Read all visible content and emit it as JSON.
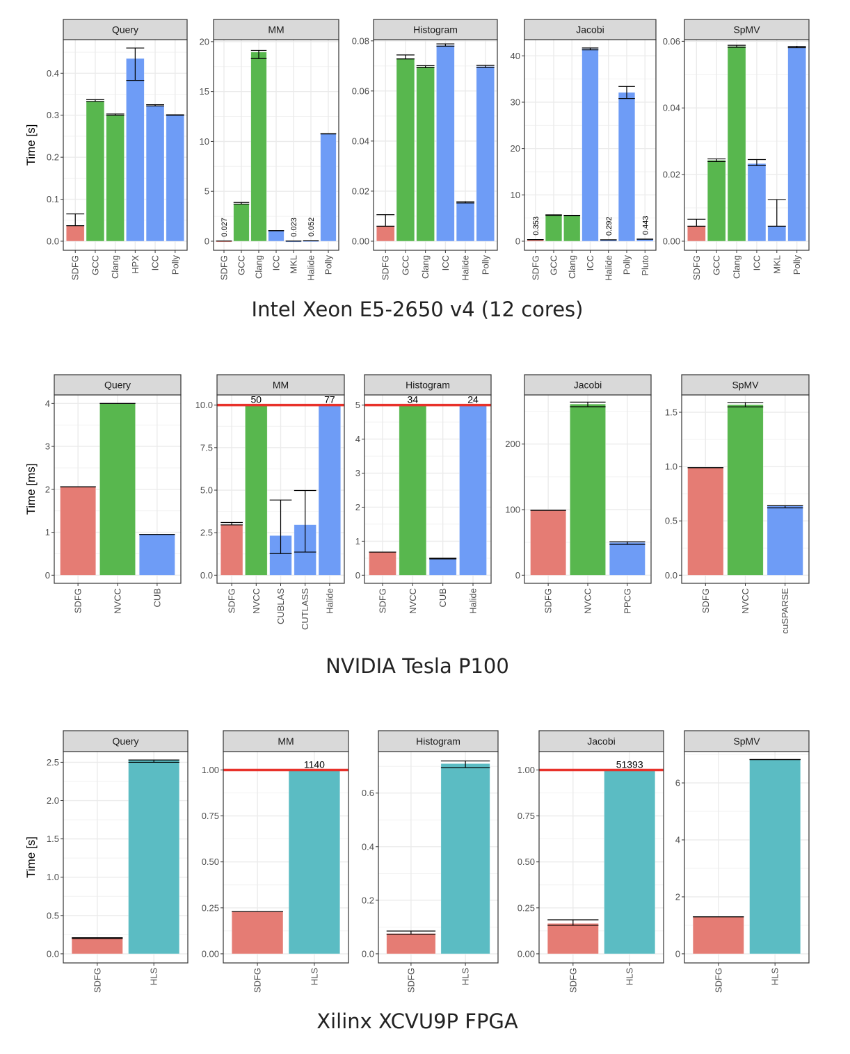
{
  "colors": {
    "sdfg": "#E57C74",
    "general": "#58B74E",
    "library": "#6E9CF6",
    "hls": "#5BBCC3",
    "limit_line": "#E8312A",
    "strip_bg": "#D9D9D9",
    "grid": "#EBEBEB"
  },
  "chart_data": [
    {
      "section": "Intel Xeon E5-2650 v4 (12 cores)",
      "ylabel": "Time [s]",
      "type": "bar",
      "grid": true,
      "panels": [
        {
          "title": "Query",
          "ylim": [
            0,
            0.48
          ],
          "ticks": [
            0,
            0.1,
            0.2,
            0.3,
            0.4
          ],
          "tick_labels": [
            "0.0",
            "0.1",
            "0.2",
            "0.3",
            "0.4"
          ],
          "categories": [
            "SDFG",
            "GCC",
            "Clang",
            "HPX",
            "ICC",
            "Polly"
          ],
          "groups": [
            "sdfg",
            "general",
            "general",
            "library",
            "library",
            "library"
          ],
          "values": [
            0.037,
            0.333,
            0.3,
            0.435,
            0.322,
            0.3
          ],
          "err_low": [
            0.037,
            0.333,
            0.3,
            0.383,
            0.322,
            0.3
          ],
          "err_high": [
            0.065,
            0.337,
            0.303,
            0.46,
            0.325,
            0.301
          ],
          "labels": [
            null,
            null,
            null,
            null,
            null,
            null
          ]
        },
        {
          "title": "MM",
          "ylim": [
            0,
            20.2
          ],
          "ticks": [
            0,
            5,
            10,
            15,
            20
          ],
          "tick_labels": [
            "0",
            "5",
            "10",
            "15",
            "20"
          ],
          "categories": [
            "SDFG",
            "GCC",
            "Clang",
            "ICC",
            "MKL",
            "Halide",
            "Polly"
          ],
          "groups": [
            "sdfg",
            "general",
            "general",
            "library",
            "library",
            "library",
            "library"
          ],
          "values": [
            0.027,
            3.75,
            18.95,
            1.05,
            0.023,
            0.052,
            10.75
          ],
          "err_low": [
            0.027,
            3.72,
            18.3,
            1.05,
            0.023,
            0.052,
            10.75
          ],
          "err_high": [
            0.027,
            3.88,
            19.12,
            1.06,
            0.023,
            0.052,
            10.78
          ],
          "labels": [
            "0.027",
            null,
            null,
            null,
            "0.023",
            "0.052",
            null
          ]
        },
        {
          "title": "Histogram",
          "ylim": [
            0,
            0.0805
          ],
          "ticks": [
            0,
            0.02,
            0.04,
            0.06,
            0.08
          ],
          "tick_labels": [
            "0.00",
            "0.02",
            "0.04",
            "0.06",
            "0.08"
          ],
          "categories": [
            "SDFG",
            "GCC",
            "Clang",
            "ICC",
            "Halide",
            "Polly"
          ],
          "groups": [
            "sdfg",
            "general",
            "general",
            "library",
            "library",
            "library"
          ],
          "values": [
            0.006,
            0.073,
            0.0697,
            0.0782,
            0.0155,
            0.0698
          ],
          "err_low": [
            0.006,
            0.0728,
            0.0693,
            0.0779,
            0.0153,
            0.0694
          ],
          "err_high": [
            0.0106,
            0.0744,
            0.0701,
            0.0788,
            0.0158,
            0.0702
          ],
          "labels": [
            null,
            null,
            null,
            null,
            null,
            null
          ]
        },
        {
          "title": "Jacobi",
          "ylim": [
            0,
            43.5
          ],
          "ticks": [
            0,
            10,
            20,
            30,
            40
          ],
          "tick_labels": [
            "0",
            "10",
            "20",
            "30",
            "40"
          ],
          "categories": [
            "SDFG",
            "GCC",
            "Clang",
            "ICC",
            "Halide",
            "Polly",
            "Pluto"
          ],
          "groups": [
            "sdfg",
            "general",
            "general",
            "library",
            "library",
            "library",
            "library"
          ],
          "values": [
            0.353,
            5.6,
            5.5,
            41.5,
            0.292,
            32.1,
            0.443
          ],
          "err_low": [
            0.353,
            5.55,
            5.5,
            41.3,
            0.292,
            30.8,
            0.443
          ],
          "err_high": [
            0.353,
            5.7,
            5.6,
            41.7,
            0.292,
            33.4,
            0.443
          ],
          "labels": [
            "0.353",
            null,
            null,
            null,
            "0.292",
            null,
            "0.443"
          ]
        },
        {
          "title": "SpMV",
          "ylim": [
            0,
            0.0605
          ],
          "ticks": [
            0,
            0.02,
            0.04,
            0.06
          ],
          "tick_labels": [
            "0.00",
            "0.02",
            "0.04",
            "0.06"
          ],
          "categories": [
            "SDFG",
            "GCC",
            "Clang",
            "ICC",
            "MKL",
            "Polly"
          ],
          "groups": [
            "sdfg",
            "general",
            "general",
            "library",
            "library",
            "library"
          ],
          "values": [
            0.0045,
            0.0243,
            0.0585,
            0.0233,
            0.0045,
            0.0583
          ],
          "err_low": [
            0.0045,
            0.0239,
            0.0582,
            0.0227,
            0.0045,
            0.0581
          ],
          "err_high": [
            0.0066,
            0.0247,
            0.0588,
            0.0245,
            0.0125,
            0.0585
          ],
          "labels": [
            null,
            null,
            null,
            null,
            null,
            null
          ]
        }
      ]
    },
    {
      "section": "NVIDIA Tesla P100",
      "ylabel": "Time [ms]",
      "type": "bar",
      "grid": true,
      "panels": [
        {
          "title": "Query",
          "ylim": [
            0,
            4.2
          ],
          "ticks": [
            0,
            1,
            2,
            3,
            4
          ],
          "tick_labels": [
            "0",
            "1",
            "2",
            "3",
            "4"
          ],
          "categories": [
            "SDFG",
            "NVCC",
            "CUB"
          ],
          "groups": [
            "sdfg",
            "general",
            "library"
          ],
          "values": [
            2.06,
            4.0,
            0.95
          ],
          "err_low": [
            2.06,
            4.0,
            0.95
          ],
          "err_high": [
            2.06,
            4.0,
            0.95
          ],
          "labels": [
            null,
            null,
            null
          ]
        },
        {
          "title": "MM",
          "ylim": [
            0,
            10.6
          ],
          "cap": 10,
          "ticks": [
            0,
            2.5,
            5,
            7.5,
            10
          ],
          "tick_labels": [
            "0.0",
            "2.5",
            "5.0",
            "7.5",
            "10.0"
          ],
          "categories": [
            "SDFG",
            "NVCC",
            "CUBLAS",
            "CUTLASS",
            "Halide"
          ],
          "groups": [
            "sdfg",
            "general",
            "library",
            "library",
            "library"
          ],
          "values": [
            2.98,
            50,
            2.33,
            2.97,
            77
          ],
          "err_low": [
            2.96,
            null,
            1.27,
            1.36,
            null
          ],
          "err_high": [
            3.1,
            null,
            4.42,
            4.98,
            null
          ],
          "labels": [
            null,
            "50",
            null,
            null,
            "77"
          ]
        },
        {
          "title": "Histogram",
          "ylim": [
            0,
            5.3
          ],
          "cap": 5,
          "ticks": [
            0,
            1,
            2,
            3,
            4,
            5
          ],
          "tick_labels": [
            "0",
            "1",
            "2",
            "3",
            "4",
            "5"
          ],
          "categories": [
            "SDFG",
            "NVCC",
            "CUB",
            "Halide"
          ],
          "groups": [
            "sdfg",
            "general",
            "library",
            "library"
          ],
          "values": [
            0.68,
            34,
            0.5,
            24
          ],
          "err_low": [
            0.68,
            null,
            0.48,
            null
          ],
          "err_high": [
            0.68,
            null,
            0.5,
            null
          ],
          "labels": [
            null,
            "34",
            null,
            "24"
          ]
        },
        {
          "title": "Jacobi",
          "ylim": [
            0,
            275
          ],
          "ticks": [
            0,
            100,
            200
          ],
          "tick_labels": [
            "0",
            "100",
            "200"
          ],
          "categories": [
            "SDFG",
            "NVCC",
            "PPCG"
          ],
          "groups": [
            "sdfg",
            "general",
            "library"
          ],
          "values": [
            99,
            261,
            50
          ],
          "err_low": [
            99,
            257,
            47
          ],
          "err_high": [
            99,
            264,
            51
          ],
          "labels": [
            null,
            null,
            null
          ]
        },
        {
          "title": "SpMV",
          "ylim": [
            0,
            1.66
          ],
          "ticks": [
            0,
            0.5,
            1,
            1.5
          ],
          "tick_labels": [
            "0.0",
            "0.5",
            "1.0",
            "1.5"
          ],
          "categories": [
            "SDFG",
            "NVCC",
            "cuSPARSE"
          ],
          "groups": [
            "sdfg",
            "general",
            "library"
          ],
          "values": [
            0.99,
            1.57,
            0.64
          ],
          "err_low": [
            0.99,
            1.55,
            0.62
          ],
          "err_high": [
            0.99,
            1.59,
            0.64
          ],
          "labels": [
            null,
            null,
            null
          ]
        }
      ]
    },
    {
      "section": "Xilinx XCVU9P FPGA",
      "ylabel": "Time [s]",
      "type": "bar",
      "grid": true,
      "panels": [
        {
          "title": "Query",
          "ylim": [
            0,
            2.64
          ],
          "ticks": [
            0,
            0.5,
            1,
            1.5,
            2,
            2.5
          ],
          "tick_labels": [
            "0.0",
            "0.5",
            "1.0",
            "1.5",
            "2.0",
            "2.5"
          ],
          "categories": [
            "SDFG",
            "HLS"
          ],
          "groups": [
            "sdfg",
            "hls"
          ],
          "values": [
            0.21,
            2.53
          ],
          "err_low": [
            0.2,
            2.5
          ],
          "err_high": [
            0.21,
            2.53
          ],
          "labels": [
            null,
            null
          ]
        },
        {
          "title": "MM",
          "ylim": [
            0,
            1.1
          ],
          "cap": 1,
          "ticks": [
            0,
            0.25,
            0.5,
            0.75,
            1
          ],
          "tick_labels": [
            "0.00",
            "0.25",
            "0.50",
            "0.75",
            "1.00"
          ],
          "categories": [
            "SDFG",
            "HLS"
          ],
          "groups": [
            "sdfg",
            "hls"
          ],
          "values": [
            0.23,
            1140
          ],
          "err_low": [
            0.23,
            null
          ],
          "err_high": [
            0.23,
            null
          ],
          "labels": [
            null,
            "1140"
          ]
        },
        {
          "title": "Histogram",
          "ylim": [
            0,
            0.755
          ],
          "ticks": [
            0,
            0.2,
            0.4,
            0.6
          ],
          "tick_labels": [
            "0.0",
            "0.2",
            "0.4",
            "0.6"
          ],
          "categories": [
            "SDFG",
            "HLS"
          ],
          "groups": [
            "sdfg",
            "hls"
          ],
          "values": [
            0.076,
            0.71
          ],
          "err_low": [
            0.073,
            0.695
          ],
          "err_high": [
            0.085,
            0.72
          ],
          "labels": [
            null,
            null
          ]
        },
        {
          "title": "Jacobi",
          "ylim": [
            0,
            1.1
          ],
          "cap": 1,
          "ticks": [
            0,
            0.25,
            0.5,
            0.75,
            1
          ],
          "tick_labels": [
            "0.00",
            "0.25",
            "0.50",
            "0.75",
            "1.00"
          ],
          "categories": [
            "SDFG",
            "HLS"
          ],
          "groups": [
            "sdfg",
            "hls"
          ],
          "values": [
            0.165,
            51393
          ],
          "err_low": [
            0.155,
            null
          ],
          "err_high": [
            0.185,
            null
          ],
          "labels": [
            null,
            "51393"
          ]
        },
        {
          "title": "SpMV",
          "ylim": [
            0,
            7.1
          ],
          "ticks": [
            0,
            2,
            4,
            6
          ],
          "tick_labels": [
            "0",
            "2",
            "4",
            "6"
          ],
          "categories": [
            "SDFG",
            "HLS"
          ],
          "groups": [
            "sdfg",
            "hls"
          ],
          "values": [
            1.3,
            6.82
          ],
          "err_low": [
            1.3,
            6.82
          ],
          "err_high": [
            1.3,
            6.82
          ],
          "labels": [
            null,
            null
          ]
        }
      ]
    }
  ]
}
